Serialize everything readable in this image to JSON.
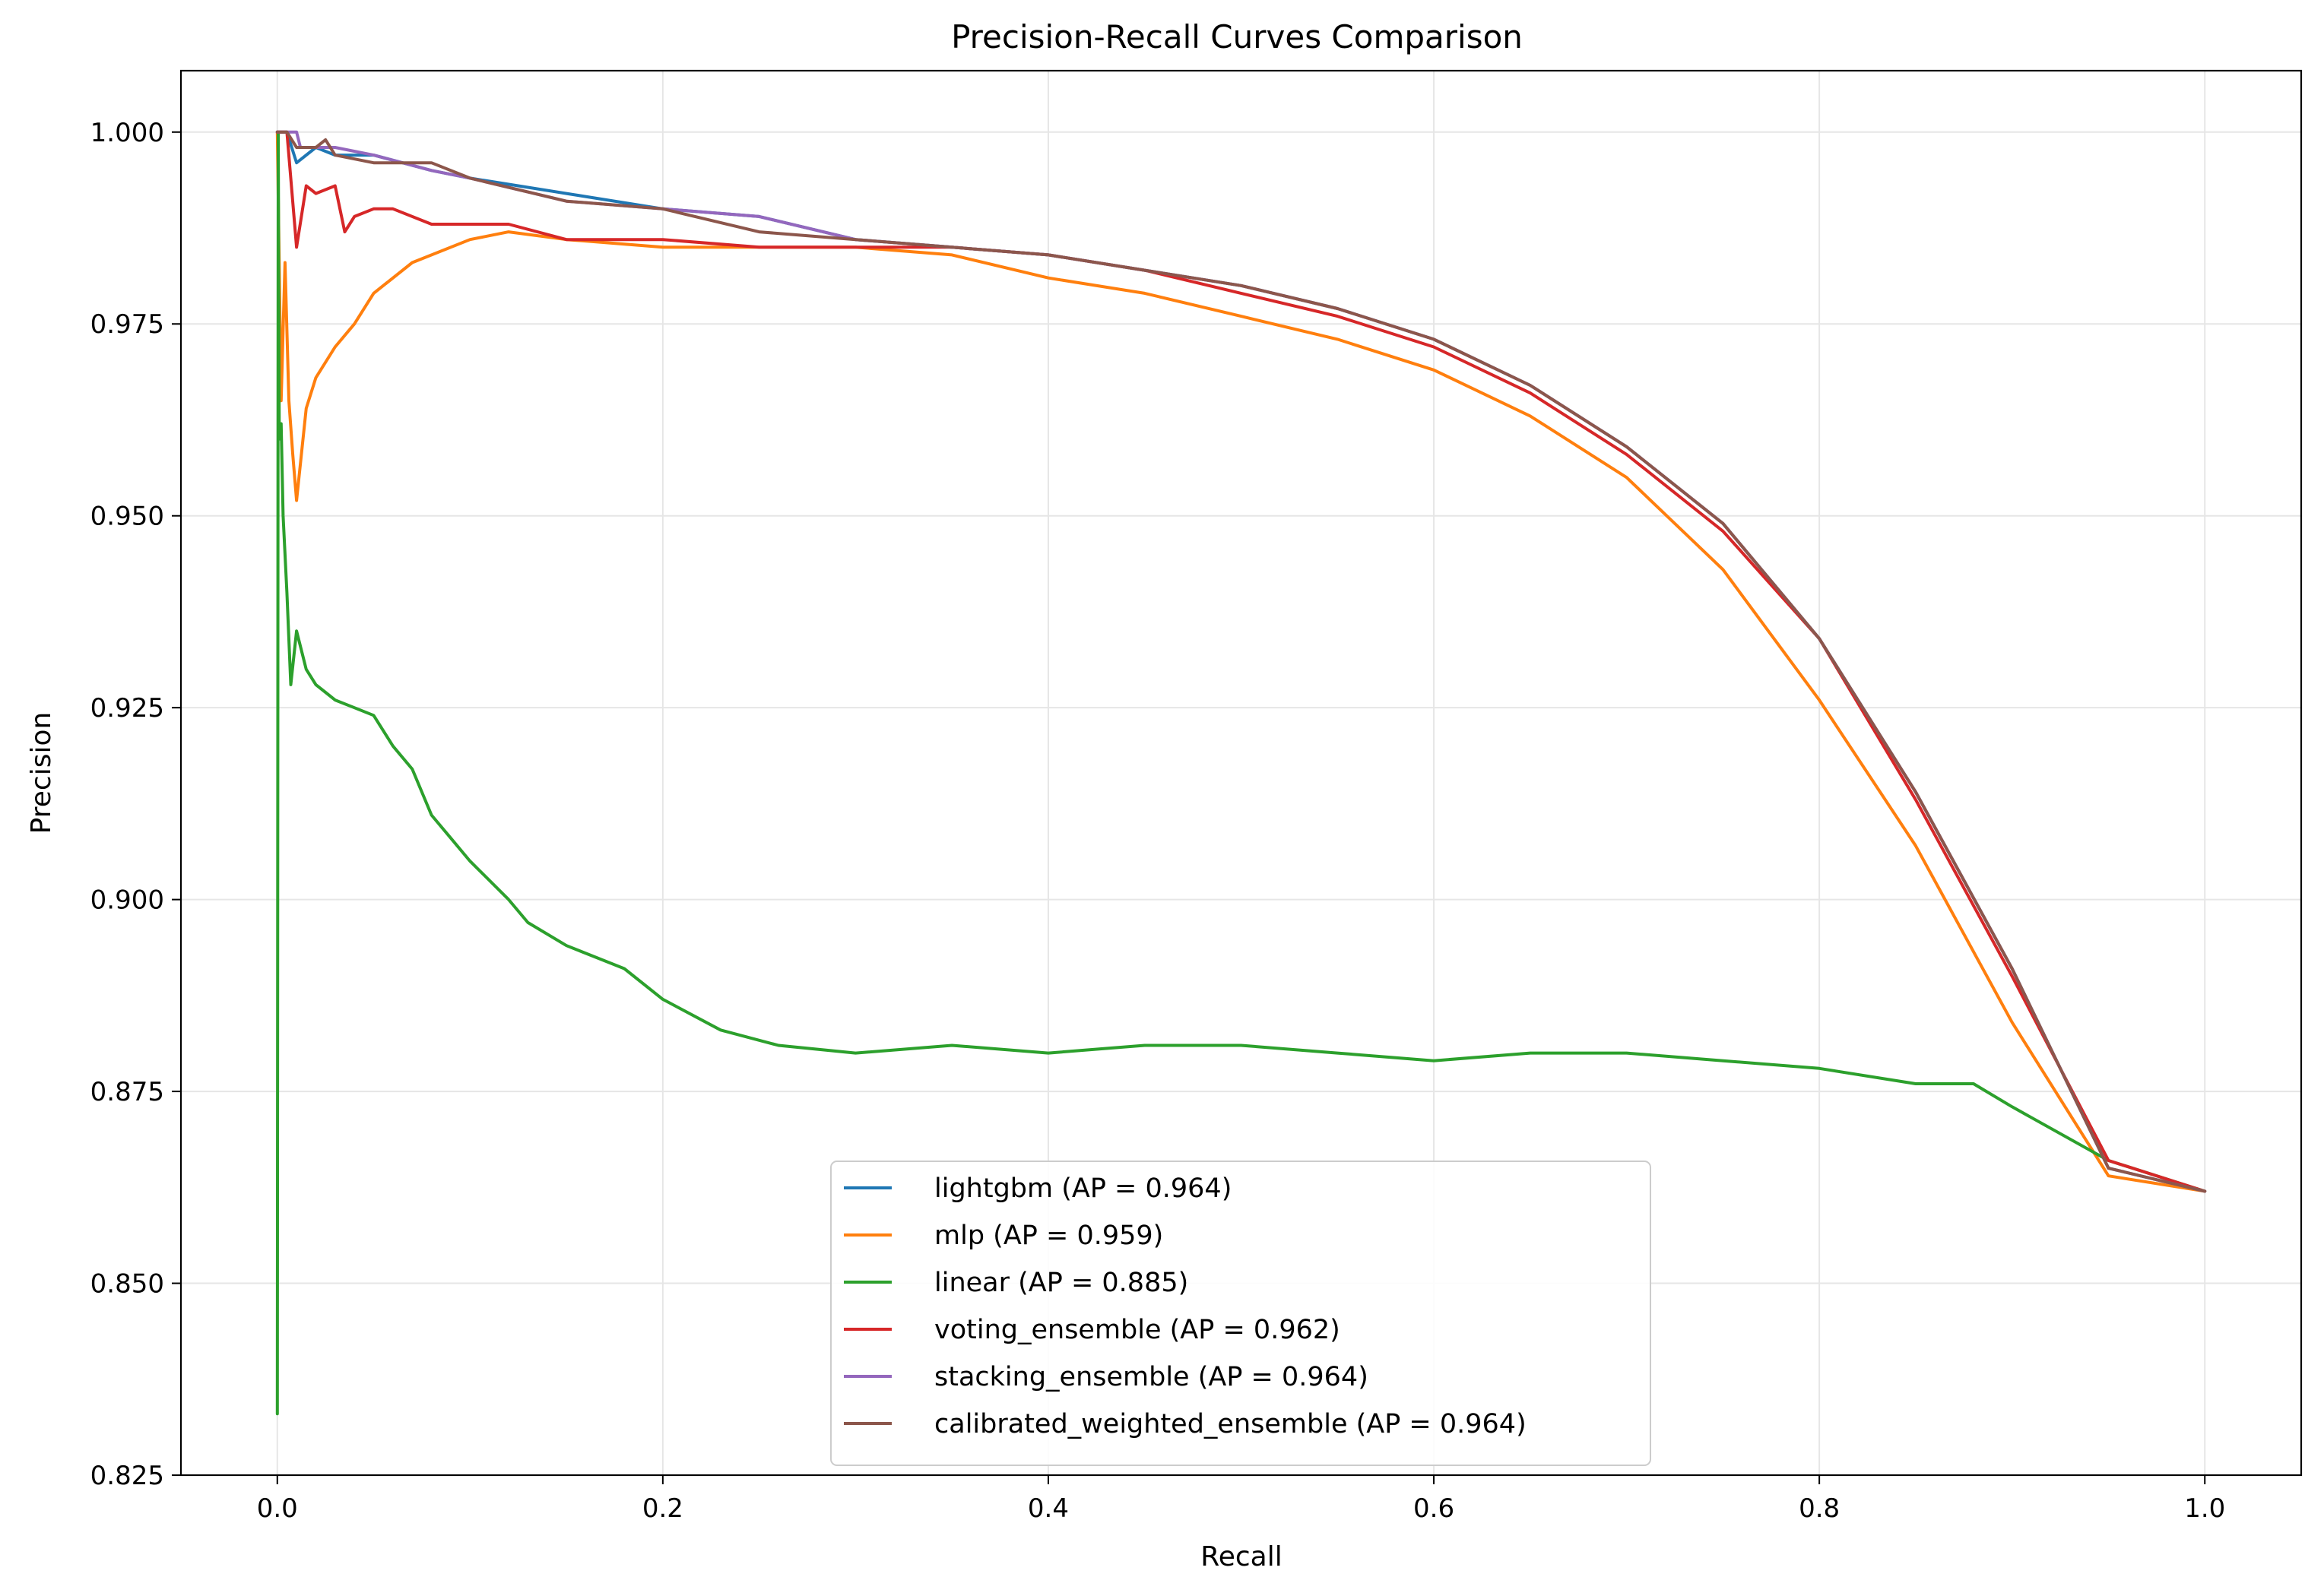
{
  "chart_data": {
    "type": "line",
    "title": "Precision-Recall Curves Comparison",
    "xlabel": "Recall",
    "ylabel": "Precision",
    "xlim": [
      -0.05,
      1.05
    ],
    "ylim": [
      0.825,
      1.008
    ],
    "xticks": [
      0.0,
      0.2,
      0.4,
      0.6,
      0.8,
      1.0
    ],
    "xtick_labels": [
      "0.0",
      "0.2",
      "0.4",
      "0.6",
      "0.8",
      "1.0"
    ],
    "yticks": [
      0.825,
      0.85,
      0.875,
      0.9,
      0.925,
      0.95,
      0.975,
      1.0
    ],
    "ytick_labels": [
      "0.825",
      "0.850",
      "0.875",
      "0.900",
      "0.925",
      "0.950",
      "0.975",
      "1.000"
    ],
    "grid": true,
    "legend_position": "lower-center",
    "series": [
      {
        "name": "lightgbm (AP = 0.964)",
        "color": "#1f77b4",
        "x": [
          0.0,
          0.002,
          0.005,
          0.01,
          0.02,
          0.03,
          0.05,
          0.08,
          0.1,
          0.15,
          0.2,
          0.25,
          0.3,
          0.35,
          0.4,
          0.45,
          0.5,
          0.55,
          0.6,
          0.65,
          0.7,
          0.75,
          0.8,
          0.85,
          0.9,
          0.95,
          1.0
        ],
        "y": [
          1.0,
          1.0,
          1.0,
          0.996,
          0.998,
          0.997,
          0.997,
          0.995,
          0.994,
          0.992,
          0.99,
          0.989,
          0.986,
          0.985,
          0.984,
          0.982,
          0.98,
          0.977,
          0.973,
          0.967,
          0.959,
          0.949,
          0.934,
          0.914,
          0.891,
          0.865,
          0.862
        ]
      },
      {
        "name": "mlp (AP = 0.959)",
        "color": "#ff7f0e",
        "x": [
          0.0,
          0.002,
          0.004,
          0.006,
          0.008,
          0.01,
          0.015,
          0.02,
          0.03,
          0.04,
          0.05,
          0.07,
          0.1,
          0.12,
          0.15,
          0.2,
          0.25,
          0.3,
          0.35,
          0.4,
          0.45,
          0.5,
          0.55,
          0.6,
          0.65,
          0.7,
          0.75,
          0.8,
          0.85,
          0.9,
          0.95,
          1.0
        ],
        "y": [
          1.0,
          0.965,
          0.983,
          0.965,
          0.958,
          0.952,
          0.964,
          0.968,
          0.972,
          0.975,
          0.979,
          0.983,
          0.986,
          0.987,
          0.986,
          0.985,
          0.985,
          0.985,
          0.984,
          0.981,
          0.979,
          0.976,
          0.973,
          0.969,
          0.963,
          0.955,
          0.943,
          0.926,
          0.907,
          0.884,
          0.864,
          0.862
        ]
      },
      {
        "name": "linear (AP = 0.885)",
        "color": "#2ca02c",
        "x": [
          0.0,
          0.0005,
          0.001,
          0.002,
          0.003,
          0.005,
          0.007,
          0.01,
          0.015,
          0.02,
          0.025,
          0.03,
          0.04,
          0.05,
          0.06,
          0.07,
          0.08,
          0.09,
          0.1,
          0.12,
          0.13,
          0.15,
          0.18,
          0.2,
          0.23,
          0.26,
          0.3,
          0.35,
          0.4,
          0.45,
          0.5,
          0.55,
          0.6,
          0.65,
          0.7,
          0.75,
          0.8,
          0.85,
          0.88,
          0.9,
          0.95,
          1.0
        ],
        "y": [
          0.833,
          1.0,
          0.96,
          0.962,
          0.95,
          0.94,
          0.928,
          0.935,
          0.93,
          0.928,
          0.927,
          0.926,
          0.925,
          0.924,
          0.92,
          0.917,
          0.911,
          0.908,
          0.905,
          0.9,
          0.897,
          0.894,
          0.891,
          0.887,
          0.883,
          0.881,
          0.88,
          0.881,
          0.88,
          0.881,
          0.881,
          0.88,
          0.879,
          0.88,
          0.88,
          0.879,
          0.878,
          0.876,
          0.876,
          0.873,
          0.866,
          0.862
        ]
      },
      {
        "name": "voting_ensemble (AP = 0.962)",
        "color": "#d62728",
        "x": [
          0.0,
          0.005,
          0.01,
          0.015,
          0.02,
          0.03,
          0.035,
          0.04,
          0.05,
          0.06,
          0.08,
          0.1,
          0.12,
          0.15,
          0.2,
          0.25,
          0.3,
          0.35,
          0.4,
          0.45,
          0.5,
          0.55,
          0.6,
          0.65,
          0.7,
          0.75,
          0.8,
          0.85,
          0.9,
          0.95,
          1.0
        ],
        "y": [
          1.0,
          1.0,
          0.985,
          0.993,
          0.992,
          0.993,
          0.987,
          0.989,
          0.99,
          0.99,
          0.988,
          0.988,
          0.988,
          0.986,
          0.986,
          0.985,
          0.985,
          0.985,
          0.984,
          0.982,
          0.979,
          0.976,
          0.972,
          0.966,
          0.958,
          0.948,
          0.934,
          0.913,
          0.89,
          0.866,
          0.862
        ]
      },
      {
        "name": "stacking_ensemble (AP = 0.964)",
        "color": "#9467bd",
        "x": [
          0.0,
          0.005,
          0.01,
          0.012,
          0.02,
          0.03,
          0.05,
          0.08,
          0.1,
          0.15,
          0.2,
          0.25,
          0.3,
          0.35,
          0.4,
          0.45,
          0.5,
          0.55,
          0.6,
          0.65,
          0.7,
          0.75,
          0.8,
          0.85,
          0.9,
          0.95,
          1.0
        ],
        "y": [
          1.0,
          1.0,
          1.0,
          0.998,
          0.998,
          0.998,
          0.997,
          0.995,
          0.994,
          0.991,
          0.99,
          0.989,
          0.986,
          0.985,
          0.984,
          0.982,
          0.98,
          0.977,
          0.973,
          0.967,
          0.959,
          0.949,
          0.934,
          0.914,
          0.891,
          0.865,
          0.862
        ]
      },
      {
        "name": "calibrated_weighted_ensemble (AP = 0.964)",
        "color": "#8c564b",
        "x": [
          0.0,
          0.005,
          0.01,
          0.02,
          0.025,
          0.03,
          0.05,
          0.08,
          0.1,
          0.15,
          0.2,
          0.25,
          0.3,
          0.35,
          0.4,
          0.45,
          0.5,
          0.55,
          0.6,
          0.65,
          0.7,
          0.75,
          0.8,
          0.85,
          0.9,
          0.95,
          1.0
        ],
        "y": [
          1.0,
          1.0,
          0.998,
          0.998,
          0.999,
          0.997,
          0.996,
          0.996,
          0.994,
          0.991,
          0.99,
          0.987,
          0.986,
          0.985,
          0.984,
          0.982,
          0.98,
          0.977,
          0.973,
          0.967,
          0.959,
          0.949,
          0.934,
          0.914,
          0.891,
          0.865,
          0.862
        ]
      }
    ]
  }
}
